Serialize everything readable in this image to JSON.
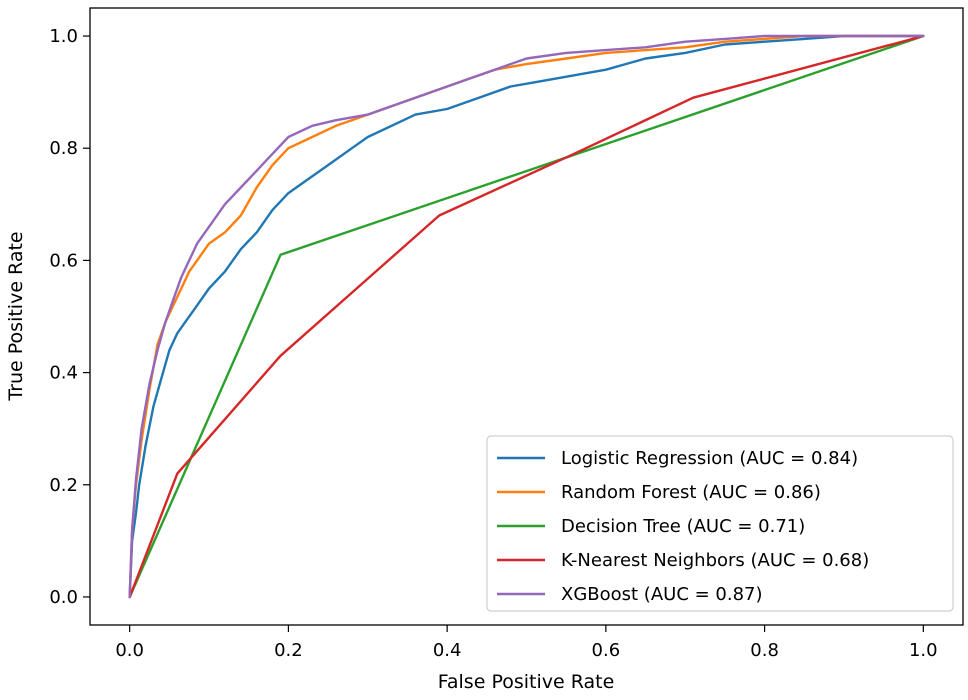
{
  "chart_data": {
    "type": "line",
    "title": "",
    "xlabel": "False Positive Rate",
    "ylabel": "True Positive Rate",
    "xlim": [
      -0.05,
      1.05
    ],
    "ylim": [
      -0.05,
      1.05
    ],
    "xticks": [
      0.0,
      0.2,
      0.4,
      0.6,
      0.8,
      1.0
    ],
    "yticks": [
      0.0,
      0.2,
      0.4,
      0.6,
      0.8,
      1.0
    ],
    "xtick_labels": [
      "0.0",
      "0.2",
      "0.4",
      "0.6",
      "0.8",
      "1.0"
    ],
    "ytick_labels": [
      "0.0",
      "0.2",
      "0.4",
      "0.6",
      "0.8",
      "1.0"
    ],
    "grid": false,
    "legend_position": "lower-right",
    "series": [
      {
        "name": "Logistic Regression (AUC = 0.84)",
        "color": "#1f77b4",
        "x": [
          0.0,
          0.003,
          0.008,
          0.012,
          0.02,
          0.03,
          0.04,
          0.05,
          0.06,
          0.07,
          0.08,
          0.09,
          0.1,
          0.12,
          0.14,
          0.16,
          0.18,
          0.2,
          0.22,
          0.25,
          0.28,
          0.3,
          0.33,
          0.36,
          0.4,
          0.44,
          0.48,
          0.52,
          0.56,
          0.6,
          0.65,
          0.7,
          0.75,
          0.8,
          0.85,
          0.9,
          0.95,
          1.0
        ],
        "y": [
          0.0,
          0.1,
          0.15,
          0.2,
          0.27,
          0.34,
          0.39,
          0.44,
          0.47,
          0.49,
          0.51,
          0.53,
          0.55,
          0.58,
          0.62,
          0.65,
          0.69,
          0.72,
          0.74,
          0.77,
          0.8,
          0.82,
          0.84,
          0.86,
          0.87,
          0.89,
          0.91,
          0.92,
          0.93,
          0.94,
          0.96,
          0.97,
          0.985,
          0.99,
          0.995,
          1.0,
          1.0,
          1.0
        ]
      },
      {
        "name": "Random Forest (AUC = 0.86)",
        "color": "#ff7f0e",
        "x": [
          0.0,
          0.003,
          0.008,
          0.015,
          0.025,
          0.035,
          0.045,
          0.055,
          0.065,
          0.075,
          0.09,
          0.1,
          0.12,
          0.14,
          0.16,
          0.18,
          0.2,
          0.23,
          0.26,
          0.3,
          0.34,
          0.38,
          0.42,
          0.46,
          0.5,
          0.55,
          0.6,
          0.65,
          0.7,
          0.75,
          0.8,
          0.85,
          0.9,
          0.95,
          1.0
        ],
        "y": [
          0.0,
          0.12,
          0.2,
          0.28,
          0.37,
          0.45,
          0.49,
          0.52,
          0.55,
          0.58,
          0.61,
          0.63,
          0.65,
          0.68,
          0.73,
          0.77,
          0.8,
          0.82,
          0.84,
          0.86,
          0.88,
          0.9,
          0.92,
          0.94,
          0.95,
          0.96,
          0.97,
          0.975,
          0.98,
          0.99,
          0.995,
          1.0,
          1.0,
          1.0,
          1.0
        ]
      },
      {
        "name": "Decision Tree (AUC = 0.71)",
        "color": "#2ca02c",
        "x": [
          0.0,
          0.19,
          1.0
        ],
        "y": [
          0.0,
          0.61,
          1.0
        ]
      },
      {
        "name": "K-Nearest Neighbors (AUC = 0.68)",
        "color": "#d62728",
        "x": [
          0.0,
          0.06,
          0.19,
          0.39,
          0.56,
          0.71,
          1.0
        ],
        "y": [
          0.0,
          0.22,
          0.43,
          0.68,
          0.79,
          0.89,
          1.0
        ]
      },
      {
        "name": "XGBoost (AUC = 0.87)",
        "color": "#9467bd",
        "x": [
          0.0,
          0.003,
          0.008,
          0.015,
          0.025,
          0.035,
          0.045,
          0.055,
          0.065,
          0.075,
          0.085,
          0.1,
          0.12,
          0.14,
          0.16,
          0.18,
          0.2,
          0.23,
          0.26,
          0.3,
          0.34,
          0.38,
          0.42,
          0.46,
          0.5,
          0.55,
          0.6,
          0.65,
          0.7,
          0.75,
          0.8,
          0.85,
          0.9,
          0.95,
          1.0
        ],
        "y": [
          0.0,
          0.12,
          0.21,
          0.3,
          0.38,
          0.44,
          0.49,
          0.53,
          0.57,
          0.6,
          0.63,
          0.66,
          0.7,
          0.73,
          0.76,
          0.79,
          0.82,
          0.84,
          0.85,
          0.86,
          0.88,
          0.9,
          0.92,
          0.94,
          0.96,
          0.97,
          0.975,
          0.98,
          0.99,
          0.995,
          1.0,
          1.0,
          1.0,
          1.0,
          1.0
        ]
      }
    ]
  }
}
